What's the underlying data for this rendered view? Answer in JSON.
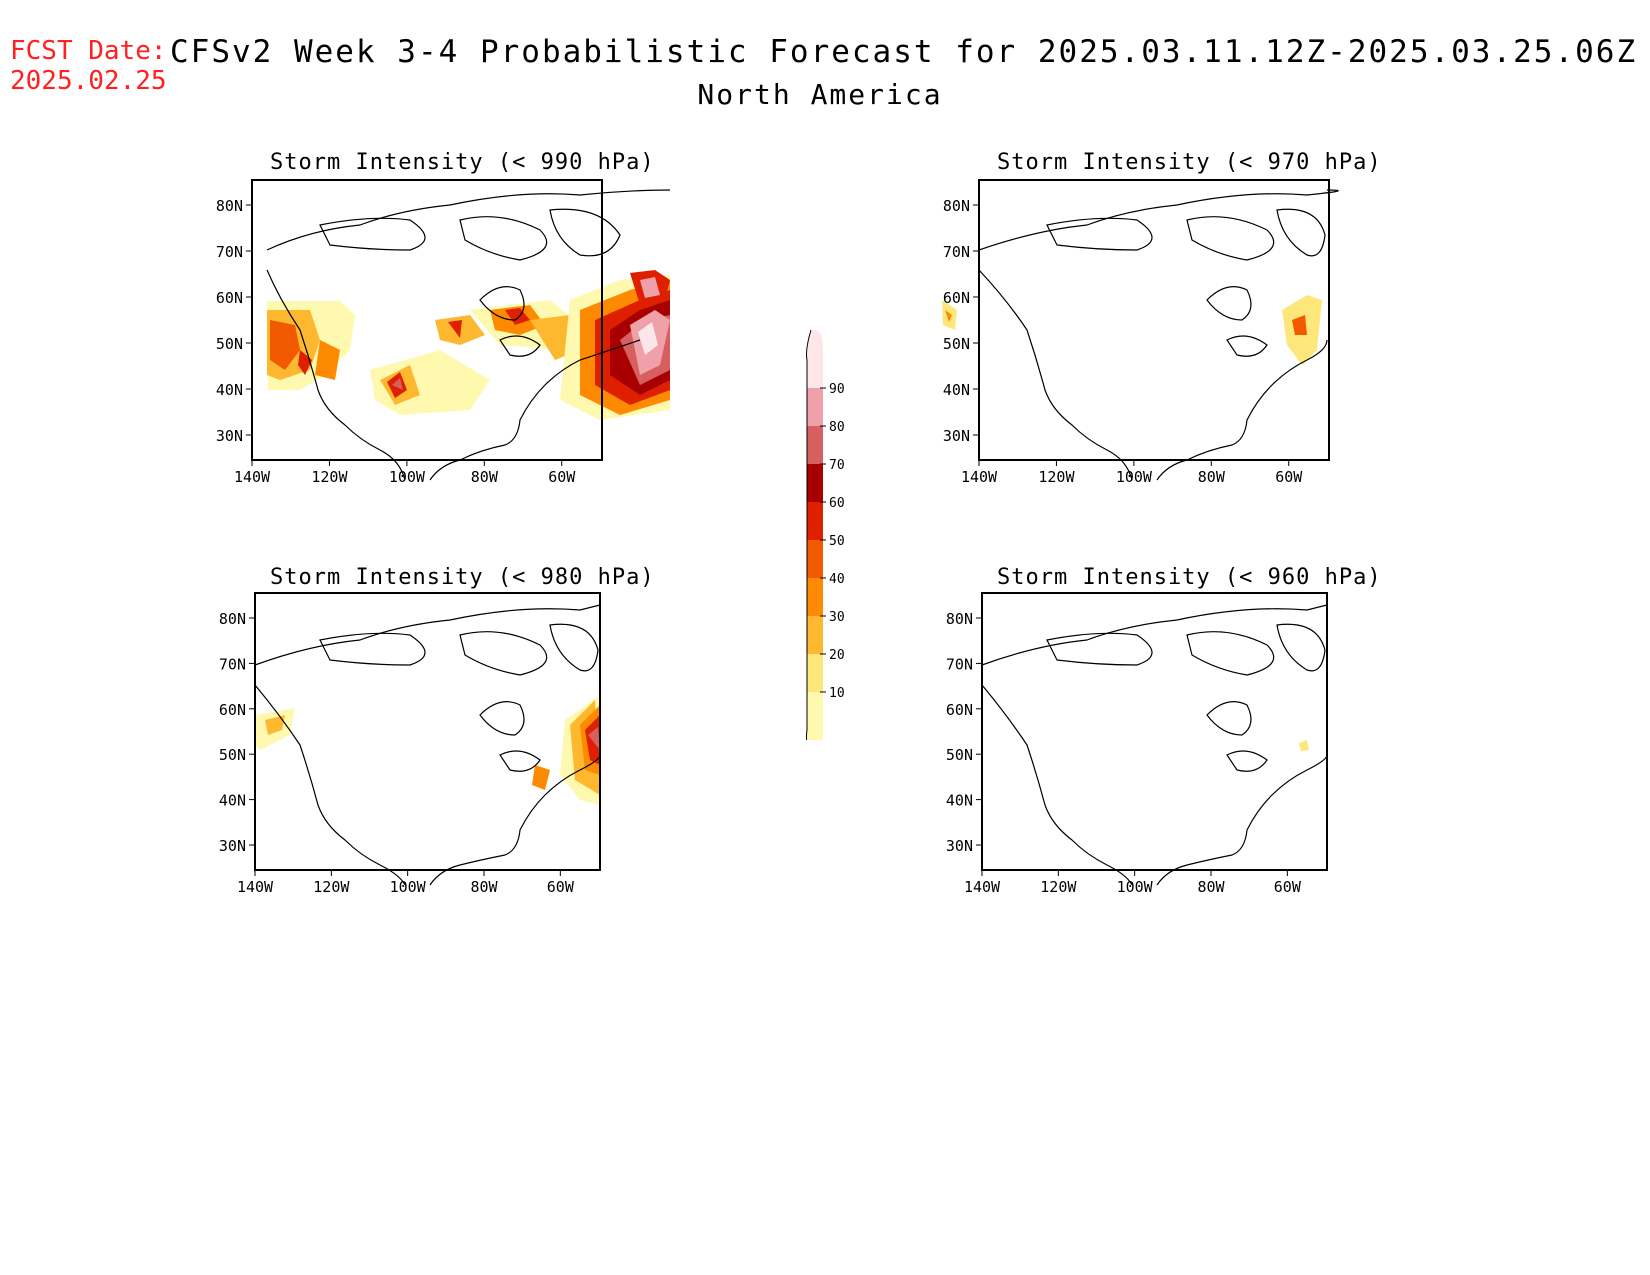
{
  "header": {
    "fcst_label": "FCST Date:",
    "fcst_date": "2025.02.25",
    "title": "CFSv2 Week 3-4 Probabilistic Forecast for 2025.03.11.12Z-2025.03.25.06Z",
    "region": "North America"
  },
  "axes": {
    "lat_ticks": [
      "80N",
      "70N",
      "60N",
      "50N",
      "40N",
      "30N"
    ],
    "lon_ticks": [
      "140W",
      "120W",
      "100W",
      "80W",
      "60W"
    ]
  },
  "panels": [
    {
      "title": "Storm Intensity (< 990 hPa)"
    },
    {
      "title": "Storm Intensity (< 970 hPa)"
    },
    {
      "title": "Storm Intensity (< 980 hPa)"
    },
    {
      "title": "Storm Intensity (< 960 hPa)"
    }
  ],
  "colorbar": {
    "levels": [
      "10",
      "20",
      "30",
      "40",
      "50",
      "60",
      "70",
      "80",
      "90"
    ],
    "colors": [
      "#fff9b0",
      "#fde67a",
      "#fdb830",
      "#fd8a00",
      "#f25a00",
      "#de2000",
      "#a80000",
      "#d66060",
      "#f0a0a8",
      "#fde6ea"
    ]
  }
}
